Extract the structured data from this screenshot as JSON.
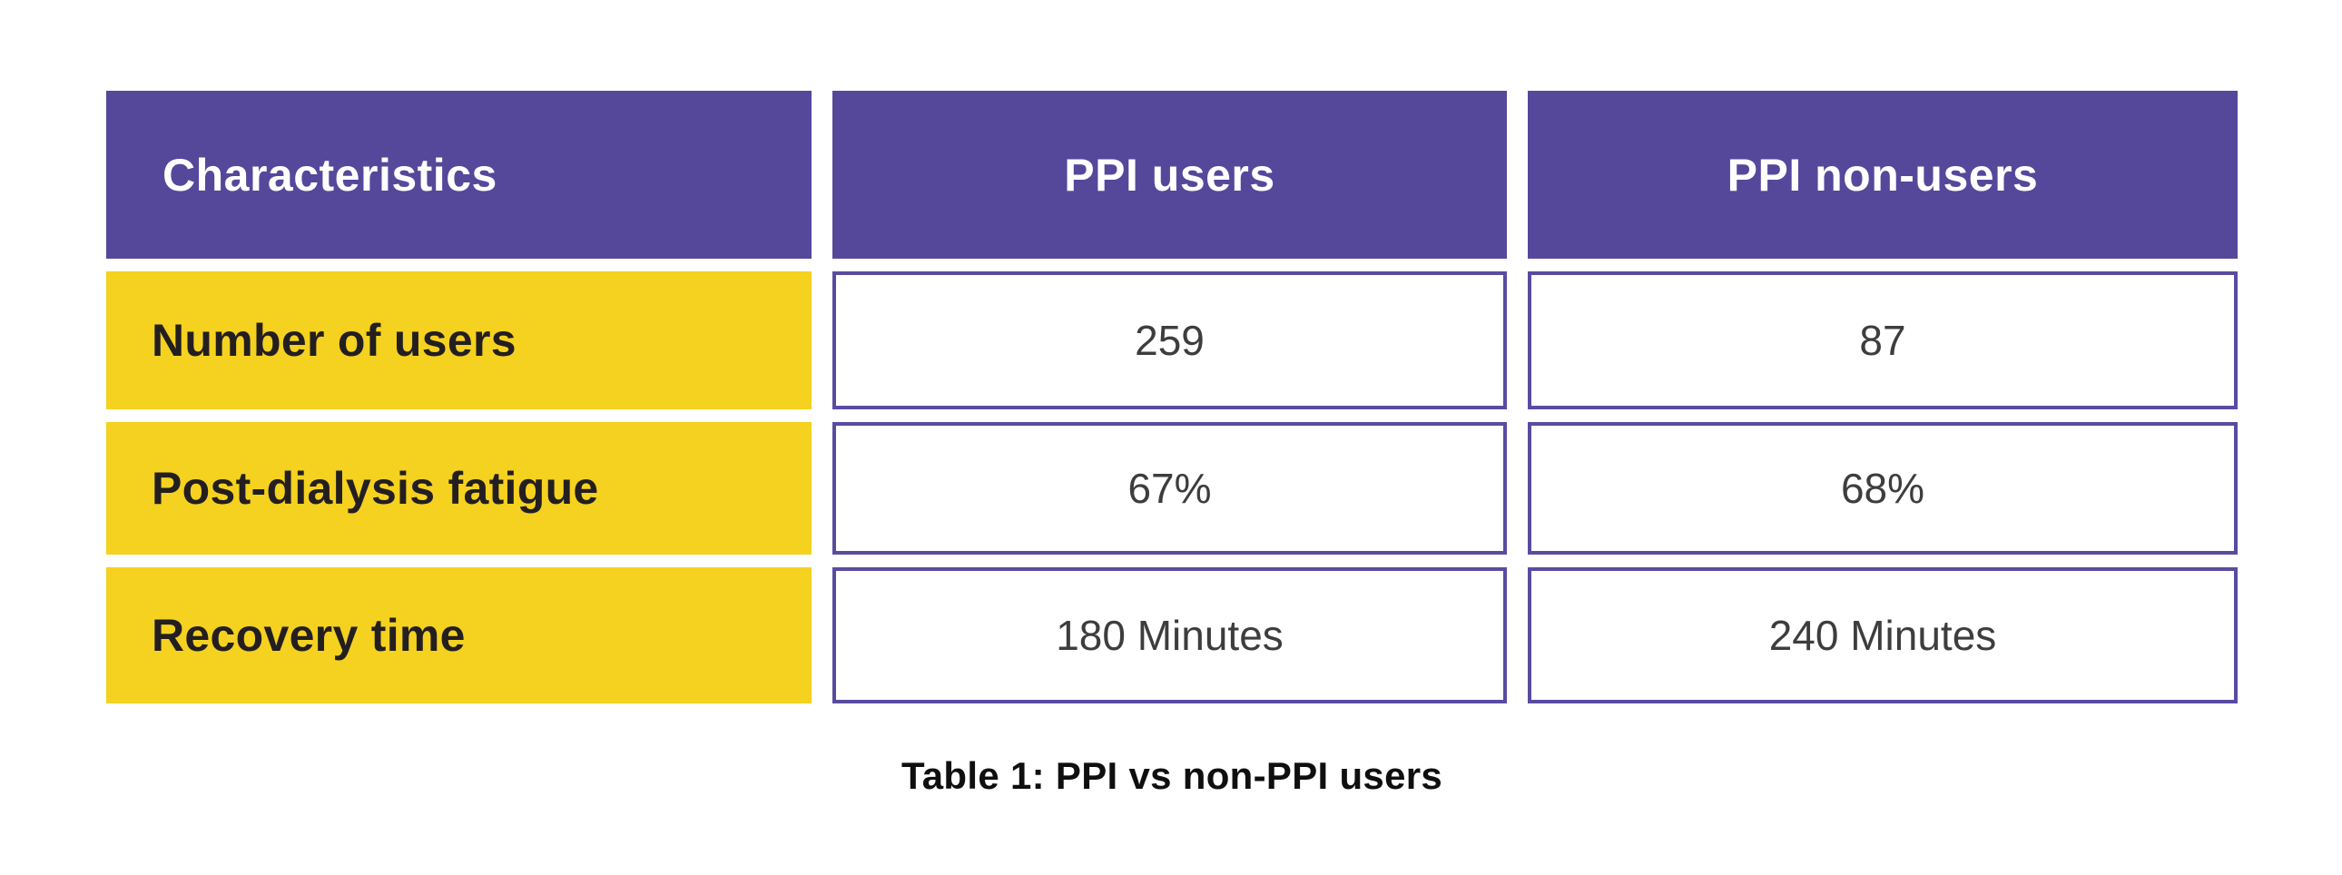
{
  "colors": {
    "header_bg": "#55489B",
    "header_text": "#FFFFFF",
    "row_label_bg": "#F5D120",
    "row_label_text": "#231F20",
    "value_cell_border": "#584CA0",
    "value_cell_bg": "#FFFFFF",
    "value_cell_text": "#3D3D3D",
    "caption_text": "#0F0F0F",
    "page_bg": "#FFFFFF"
  },
  "table": {
    "columns": [
      "Characteristics",
      "PPI users",
      "PPI non-users"
    ],
    "rows": [
      {
        "label": "Number of users",
        "values": [
          "259",
          "87"
        ]
      },
      {
        "label": "Post-dialysis fatigue",
        "values": [
          "67%",
          "68%"
        ]
      },
      {
        "label": "Recovery time",
        "values": [
          "180 Minutes",
          "240 Minutes"
        ]
      }
    ],
    "caption": "Table 1: PPI vs non-PPI users"
  },
  "chart_data": {
    "type": "table",
    "title": "Table 1: PPI vs non-PPI users",
    "columns": [
      "Characteristics",
      "PPI users",
      "PPI non-users"
    ],
    "rows": [
      [
        "Number of users",
        259,
        87
      ],
      [
        "Post-dialysis fatigue",
        "67%",
        "68%"
      ],
      [
        "Recovery time",
        "180 Minutes",
        "240 Minutes"
      ]
    ],
    "notes": {
      "header_style": "purple background, white bold text",
      "label_style": "yellow background, dark bold text",
      "value_style": "white cells with purple border, centered text",
      "legend_position": "none",
      "grid": "separated blocks with white gutters"
    }
  }
}
